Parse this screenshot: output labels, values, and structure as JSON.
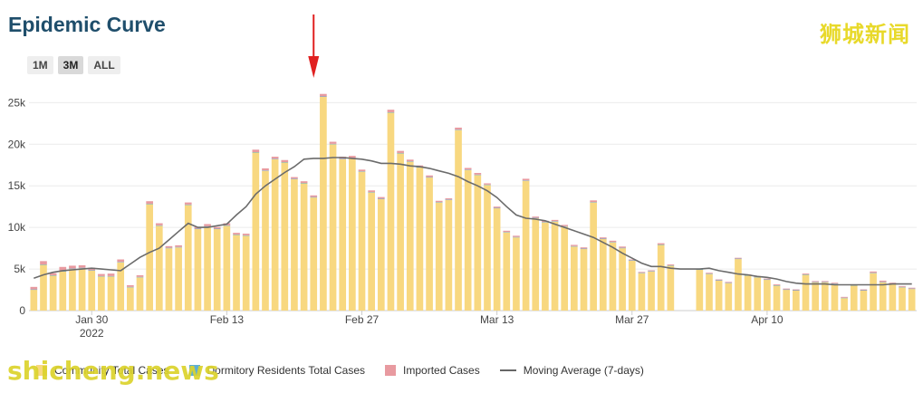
{
  "header": {
    "title": "Epidemic Curve"
  },
  "watermarks": {
    "top_right": "狮城新闻",
    "bottom_left": "shicheng.news"
  },
  "range_buttons": [
    {
      "label": "1M",
      "active": false
    },
    {
      "label": "3M",
      "active": true
    },
    {
      "label": "ALL",
      "active": false
    }
  ],
  "colors": {
    "community": "#f8d880",
    "dormitory": "#5eaed3",
    "imported": "#e89aa0",
    "moving_average": "#6b6b6b",
    "annotation_arrow": "#e02020",
    "grid": "#ececec"
  },
  "chart_data": {
    "type": "bar",
    "title": "Epidemic Curve",
    "x_start_date": "2022-01-24",
    "x_tick_labels": [
      {
        "day_index": 6,
        "label": "Jan 30",
        "sublabel": "2022"
      },
      {
        "day_index": 20,
        "label": "Feb 13"
      },
      {
        "day_index": 34,
        "label": "Feb 27"
      },
      {
        "day_index": 48,
        "label": "Mar 13"
      },
      {
        "day_index": 62,
        "label": "Mar 27"
      },
      {
        "day_index": 76,
        "label": "Apr 10"
      }
    ],
    "y_ticks": [
      "0",
      "5k",
      "10k",
      "15k",
      "20k",
      "25k"
    ],
    "ylim": [
      0,
      27000
    ],
    "y_tick_values": [
      0,
      5000,
      10000,
      15000,
      20000,
      25000
    ],
    "grid": true,
    "legend_position": "bottom",
    "legend": [
      {
        "name": "Community Total Cases",
        "color_key": "community"
      },
      {
        "name": "Dormitory Residents Total Cases",
        "color_key": "dormitory"
      },
      {
        "name": "Imported Cases",
        "color_key": "imported"
      },
      {
        "name": "Moving Average (7-days)",
        "color_key": "moving_average"
      }
    ],
    "annotation": {
      "type": "arrow",
      "day_index": 29
    },
    "series": [
      {
        "name": "Community Total Cases",
        "values": [
          2500,
          5500,
          4200,
          4700,
          5000,
          5100,
          4800,
          4100,
          4100,
          5800,
          2800,
          4000,
          12800,
          10200,
          7500,
          7600,
          12700,
          9800,
          10100,
          9800,
          10200,
          9100,
          9000,
          19000,
          16800,
          18200,
          17800,
          15800,
          15300,
          13600,
          25700,
          20000,
          18200,
          18300,
          16700,
          14200,
          13400,
          23800,
          18900,
          17900,
          17200,
          16000,
          13000,
          13300,
          21700,
          16900,
          16300,
          15100,
          12300,
          9400,
          8800,
          15600,
          11100,
          10600,
          10700,
          10100,
          7700,
          7400,
          13000,
          8600,
          8200,
          7500,
          6000,
          4500,
          4700,
          7900,
          5400,
          0,
          0,
          4900,
          4400,
          3600,
          3300,
          6200,
          4200,
          4000,
          3700,
          3000,
          2500,
          2400,
          4300,
          3400,
          3400,
          3200,
          1500,
          3000,
          2400,
          4500,
          3400,
          3200,
          2800,
          2600
        ]
      },
      {
        "name": "Dormitory Residents Total Cases",
        "values": [
          50,
          50,
          50,
          50,
          50,
          50,
          50,
          50,
          50,
          50,
          50,
          50,
          50,
          50,
          50,
          50,
          50,
          50,
          50,
          50,
          50,
          50,
          50,
          50,
          50,
          50,
          50,
          50,
          50,
          50,
          50,
          50,
          50,
          50,
          50,
          50,
          50,
          50,
          50,
          50,
          50,
          50,
          50,
          50,
          50,
          50,
          50,
          50,
          50,
          50,
          50,
          50,
          50,
          50,
          50,
          50,
          50,
          50,
          50,
          50,
          50,
          50,
          50,
          50,
          50,
          50,
          50,
          0,
          0,
          50,
          50,
          50,
          50,
          50,
          50,
          50,
          50,
          50,
          50,
          50,
          50,
          50,
          50,
          50,
          50,
          50,
          50,
          50,
          50,
          50,
          50,
          50
        ]
      },
      {
        "name": "Imported Cases",
        "values": [
          300,
          400,
          250,
          500,
          350,
          300,
          300,
          250,
          300,
          300,
          200,
          200,
          300,
          250,
          200,
          200,
          250,
          200,
          250,
          200,
          250,
          200,
          200,
          300,
          250,
          250,
          250,
          200,
          200,
          200,
          300,
          250,
          250,
          250,
          200,
          200,
          200,
          300,
          250,
          200,
          200,
          200,
          150,
          150,
          250,
          200,
          200,
          150,
          150,
          150,
          150,
          200,
          150,
          150,
          150,
          150,
          150,
          150,
          200,
          150,
          150,
          150,
          100,
          100,
          100,
          150,
          100,
          0,
          0,
          100,
          100,
          100,
          100,
          100,
          100,
          100,
          100,
          100,
          100,
          100,
          100,
          100,
          100,
          100,
          100,
          100,
          100,
          150,
          150,
          100,
          100,
          100
        ]
      },
      {
        "name": "Moving Average (7-days)",
        "type": "line",
        "values": [
          3900,
          4300,
          4600,
          4800,
          4900,
          5000,
          5100,
          5000,
          4900,
          4800,
          5600,
          6400,
          7000,
          7500,
          8500,
          9500,
          10500,
          10000,
          10000,
          10200,
          10400,
          11500,
          12500,
          14000,
          15000,
          15800,
          16600,
          17300,
          18200,
          18300,
          18300,
          18400,
          18400,
          18300,
          18200,
          18000,
          17700,
          17700,
          17600,
          17400,
          17300,
          17100,
          16800,
          16500,
          16100,
          15500,
          15000,
          14400,
          13600,
          12500,
          11500,
          11100,
          11000,
          10800,
          10400,
          10000,
          9600,
          9200,
          8800,
          8200,
          7600,
          6900,
          6300,
          5700,
          5300,
          5300,
          5100,
          5000,
          5000,
          5000,
          5100,
          4800,
          4600,
          4400,
          4300,
          4100,
          4000,
          3800,
          3500,
          3300,
          3200,
          3200,
          3200,
          3100,
          3100,
          3100,
          3100,
          3100,
          3100,
          3200,
          3200,
          3200
        ]
      }
    ]
  }
}
